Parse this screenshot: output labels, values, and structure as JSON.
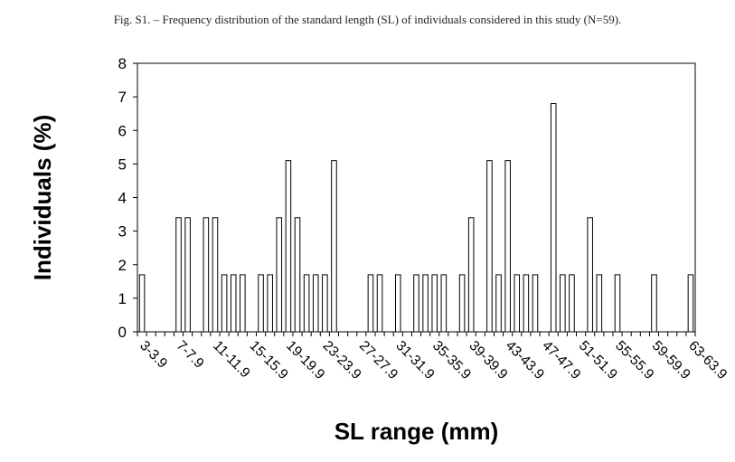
{
  "caption": "Fig. S1. – Frequency distribution of the standard length (SL) of individuals considered in this study (N=59).",
  "chart_data": {
    "type": "bar",
    "xlabel": "SL range (mm)",
    "ylabel": "Individuals (%)",
    "ylim": [
      0,
      8
    ],
    "yticks": [
      0,
      1,
      2,
      3,
      4,
      5,
      6,
      7,
      8
    ],
    "grid": false,
    "legend": "none",
    "bar_color": "#ffffff",
    "bar_edge_color": "#000000",
    "categories": [
      "3-3.9",
      "4-4.9",
      "5-5.9",
      "6-6.9",
      "7-7.9",
      "8-8.9",
      "9-9.9",
      "10-10.9",
      "11-11.9",
      "12-12.9",
      "13-13.9",
      "14-14.9",
      "15-15.9",
      "16-16.9",
      "17-17.9",
      "18-18.9",
      "19-19.9",
      "20-20.9",
      "21-21.9",
      "22-22.9",
      "23-23.9",
      "24-24.9",
      "25-25.9",
      "26-26.9",
      "27-27.9",
      "28-28.9",
      "29-29.9",
      "30-30.9",
      "31-31.9",
      "32-32.9",
      "33-33.9",
      "34-34.9",
      "35-35.9",
      "36-36.9",
      "37-37.9",
      "38-38.9",
      "39-39.9",
      "40-40.9",
      "41-41.9",
      "42-42.9",
      "43-43.9",
      "44-44.9",
      "45-45.9",
      "46-46.9",
      "47-47.9",
      "48-48.9",
      "49-49.9",
      "50-50.9",
      "51-51.9",
      "52-52.9",
      "53-53.9",
      "54-54.9",
      "55-55.9",
      "56-56.9",
      "57-57.9",
      "58-58.9",
      "59-59.9",
      "60-60.9",
      "61-61.9",
      "62-62.9",
      "63-63.9"
    ],
    "labeled_categories": [
      "3-3.9",
      "7-7.9",
      "11-11.9",
      "15-15.9",
      "19-19.9",
      "23-23.9",
      "27-27.9",
      "31-31.9",
      "35-35.9",
      "39-39.9",
      "43-43.9",
      "47-47.9",
      "51-51.9",
      "55-55.9",
      "59-59.9",
      "63-63.9"
    ],
    "values": [
      1.7,
      0,
      0,
      0,
      3.4,
      3.4,
      0,
      3.4,
      3.4,
      1.7,
      1.7,
      1.7,
      0,
      1.7,
      1.7,
      3.4,
      5.1,
      3.4,
      1.7,
      1.7,
      1.7,
      5.1,
      0,
      0,
      0,
      1.7,
      1.7,
      0,
      1.7,
      0,
      1.7,
      1.7,
      1.7,
      1.7,
      0,
      1.7,
      3.4,
      0,
      5.1,
      1.7,
      5.1,
      1.7,
      1.7,
      1.7,
      0,
      6.8,
      1.7,
      1.7,
      0,
      3.4,
      1.7,
      0,
      1.7,
      0,
      0,
      0,
      1.7,
      0,
      0,
      0,
      1.7
    ]
  }
}
